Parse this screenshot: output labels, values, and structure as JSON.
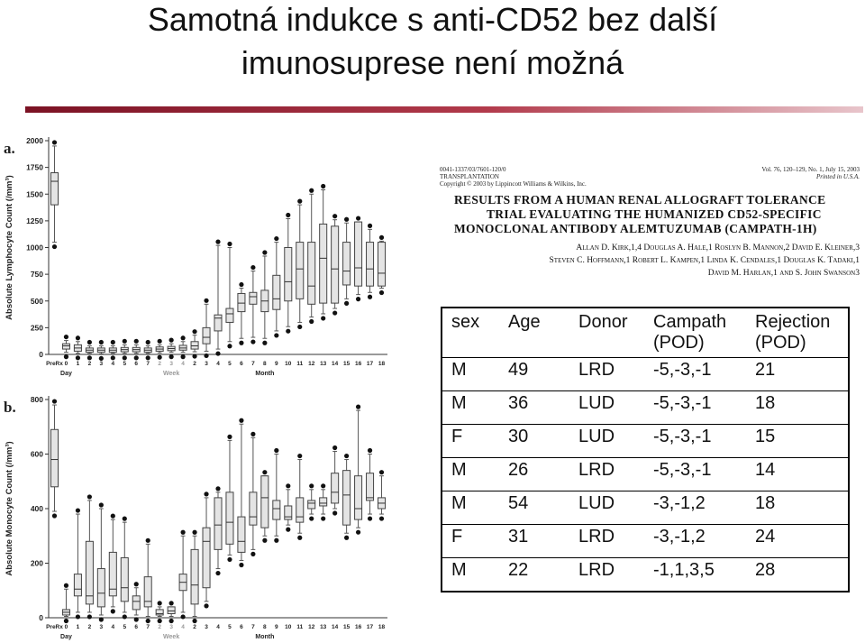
{
  "slide": {
    "title_line1": "Samotná indukce s anti-CD52 bez další",
    "title_line2": "imunosuprese není možná"
  },
  "paper": {
    "meta_left": [
      "0041-1337/03/7601-120/0",
      "TRANSPLANTATION",
      "Copyright © 2003 by Lippincott Williams & Wilkins, Inc."
    ],
    "meta_right": [
      "Vol. 76, 120–129, No. 1, July 15, 2003",
      "Printed in U.S.A."
    ],
    "title_lines": [
      "RESULTS FROM A HUMAN RENAL ALLOGRAFT TOLERANCE",
      "TRIAL EVALUATING THE HUMANIZED CD52-SPECIFIC",
      "MONOCLONAL ANTIBODY ALEMTUZUMAB (CAMPATH-1H)"
    ],
    "author_lines": [
      "Allan D. Kirk,1,4 Douglas A. Hale,1 Roslyn B. Mannon,2 David E. Kleiner,3",
      "Steven C. Hoffmann,1 Robert L. Kampen,1 Linda K. Cendales,1 Douglas K. Tadaki,1",
      "David M. Harlan,1 and S. John Swanson3"
    ]
  },
  "table": {
    "headers": [
      "sex",
      "Age",
      "Donor",
      "Campath\n(POD)",
      "Rejection\n(POD)"
    ],
    "rows": [
      [
        "M",
        "49",
        "LRD",
        "-5,-3,-1",
        "21"
      ],
      [
        "M",
        "36",
        "LUD",
        "-5,-3,-1",
        "18"
      ],
      [
        "F",
        "30",
        "LUD",
        "-5,-3,-1",
        "15"
      ],
      [
        "M",
        "26",
        "LRD",
        "-5,-3,-1",
        "14"
      ],
      [
        "M",
        "54",
        "LUD",
        "-3,-1,2",
        "18"
      ],
      [
        "F",
        "31",
        "LRD",
        "-3,-1,2",
        "24"
      ],
      [
        "M",
        "22",
        "LRD",
        "-1,1,3,5",
        "28"
      ]
    ]
  },
  "chart_data": [
    {
      "type": "box",
      "panel_label": "a.",
      "ylabel": "Absolute Lymphocyte Count (/mm³)",
      "ylim": [
        0,
        2000
      ],
      "yticks": [
        0,
        250,
        500,
        750,
        1000,
        1250,
        1500,
        1750,
        2000
      ],
      "categories": [
        "PreRx",
        "0",
        "1",
        "2",
        "3",
        "4",
        "5",
        "6",
        "7",
        "2",
        "3",
        "4",
        "2",
        "3",
        "4",
        "5",
        "6",
        "7",
        "8",
        "9",
        "10",
        "11",
        "12",
        "13",
        "14",
        "15",
        "16",
        "17",
        "18"
      ],
      "group_labels": [
        "Day",
        "Week",
        "Month"
      ],
      "boxes": [
        [
          1050,
          1400,
          1620,
          1700,
          1950
        ],
        [
          20,
          50,
          80,
          100,
          130
        ],
        [
          10,
          30,
          60,
          90,
          120
        ],
        [
          10,
          20,
          40,
          60,
          80
        ],
        [
          5,
          20,
          40,
          60,
          80
        ],
        [
          10,
          20,
          40,
          60,
          80
        ],
        [
          10,
          25,
          45,
          65,
          90
        ],
        [
          10,
          25,
          45,
          65,
          90
        ],
        [
          10,
          20,
          40,
          60,
          80
        ],
        [
          15,
          30,
          50,
          70,
          90
        ],
        [
          20,
          35,
          55,
          75,
          100
        ],
        [
          20,
          40,
          60,
          85,
          120
        ],
        [
          25,
          50,
          80,
          120,
          180
        ],
        [
          30,
          100,
          160,
          250,
          470
        ],
        [
          50,
          220,
          340,
          370,
          1020
        ],
        [
          120,
          300,
          380,
          430,
          1000
        ],
        [
          150,
          400,
          480,
          570,
          620
        ],
        [
          160,
          470,
          540,
          580,
          780
        ],
        [
          150,
          400,
          500,
          600,
          920
        ],
        [
          220,
          420,
          520,
          740,
          1050
        ],
        [
          260,
          500,
          680,
          1000,
          1270
        ],
        [
          300,
          520,
          800,
          1050,
          1400
        ],
        [
          350,
          470,
          640,
          1050,
          1500
        ],
        [
          380,
          480,
          900,
          1220,
          1540
        ],
        [
          430,
          480,
          800,
          1200,
          1260
        ],
        [
          520,
          650,
          780,
          1050,
          1230
        ],
        [
          560,
          640,
          810,
          1240,
          1240
        ],
        [
          580,
          640,
          800,
          1050,
          1170
        ],
        [
          620,
          640,
          760,
          1050,
          1060
        ]
      ]
    },
    {
      "type": "box",
      "panel_label": "b.",
      "ylabel": "Absolute Monocyte Count (/mm³)",
      "ylim": [
        0,
        800
      ],
      "yticks": [
        0,
        200,
        400,
        600,
        800
      ],
      "categories": [
        "PreRx",
        "0",
        "1",
        "2",
        "3",
        "4",
        "5",
        "6",
        "7",
        "2",
        "3",
        "4",
        "2",
        "3",
        "4",
        "5",
        "6",
        "7",
        "8",
        "9",
        "10",
        "11",
        "12",
        "13",
        "14",
        "15",
        "16",
        "17",
        "18"
      ],
      "group_labels": [
        "Day",
        "Week",
        "Month"
      ],
      "boxes": [
        [
          390,
          480,
          580,
          690,
          780
        ],
        [
          5,
          10,
          20,
          30,
          105
        ],
        [
          20,
          80,
          105,
          160,
          380
        ],
        [
          20,
          50,
          80,
          280,
          430
        ],
        [
          10,
          40,
          90,
          180,
          400
        ],
        [
          40,
          80,
          105,
          240,
          360
        ],
        [
          20,
          60,
          110,
          220,
          350
        ],
        [
          10,
          30,
          60,
          80,
          110
        ],
        [
          5,
          40,
          60,
          150,
          270
        ],
        [
          5,
          10,
          15,
          30,
          40
        ],
        [
          5,
          15,
          25,
          40,
          40
        ],
        [
          20,
          100,
          130,
          160,
          300
        ],
        [
          5,
          50,
          120,
          250,
          300
        ],
        [
          60,
          110,
          280,
          330,
          440
        ],
        [
          180,
          250,
          340,
          440,
          460
        ],
        [
          230,
          270,
          350,
          460,
          650
        ],
        [
          210,
          240,
          280,
          370,
          710
        ],
        [
          250,
          340,
          370,
          460,
          660
        ],
        [
          300,
          330,
          440,
          520,
          520
        ],
        [
          300,
          360,
          400,
          430,
          600
        ],
        [
          340,
          360,
          370,
          410,
          470
        ],
        [
          310,
          350,
          370,
          440,
          580
        ],
        [
          380,
          400,
          420,
          430,
          470
        ],
        [
          380,
          410,
          420,
          440,
          470
        ],
        [
          400,
          420,
          460,
          530,
          610
        ],
        [
          310,
          340,
          450,
          540,
          580
        ],
        [
          330,
          360,
          400,
          520,
          760
        ],
        [
          380,
          430,
          440,
          530,
          600
        ],
        [
          380,
          400,
          420,
          440,
          520
        ]
      ]
    }
  ]
}
